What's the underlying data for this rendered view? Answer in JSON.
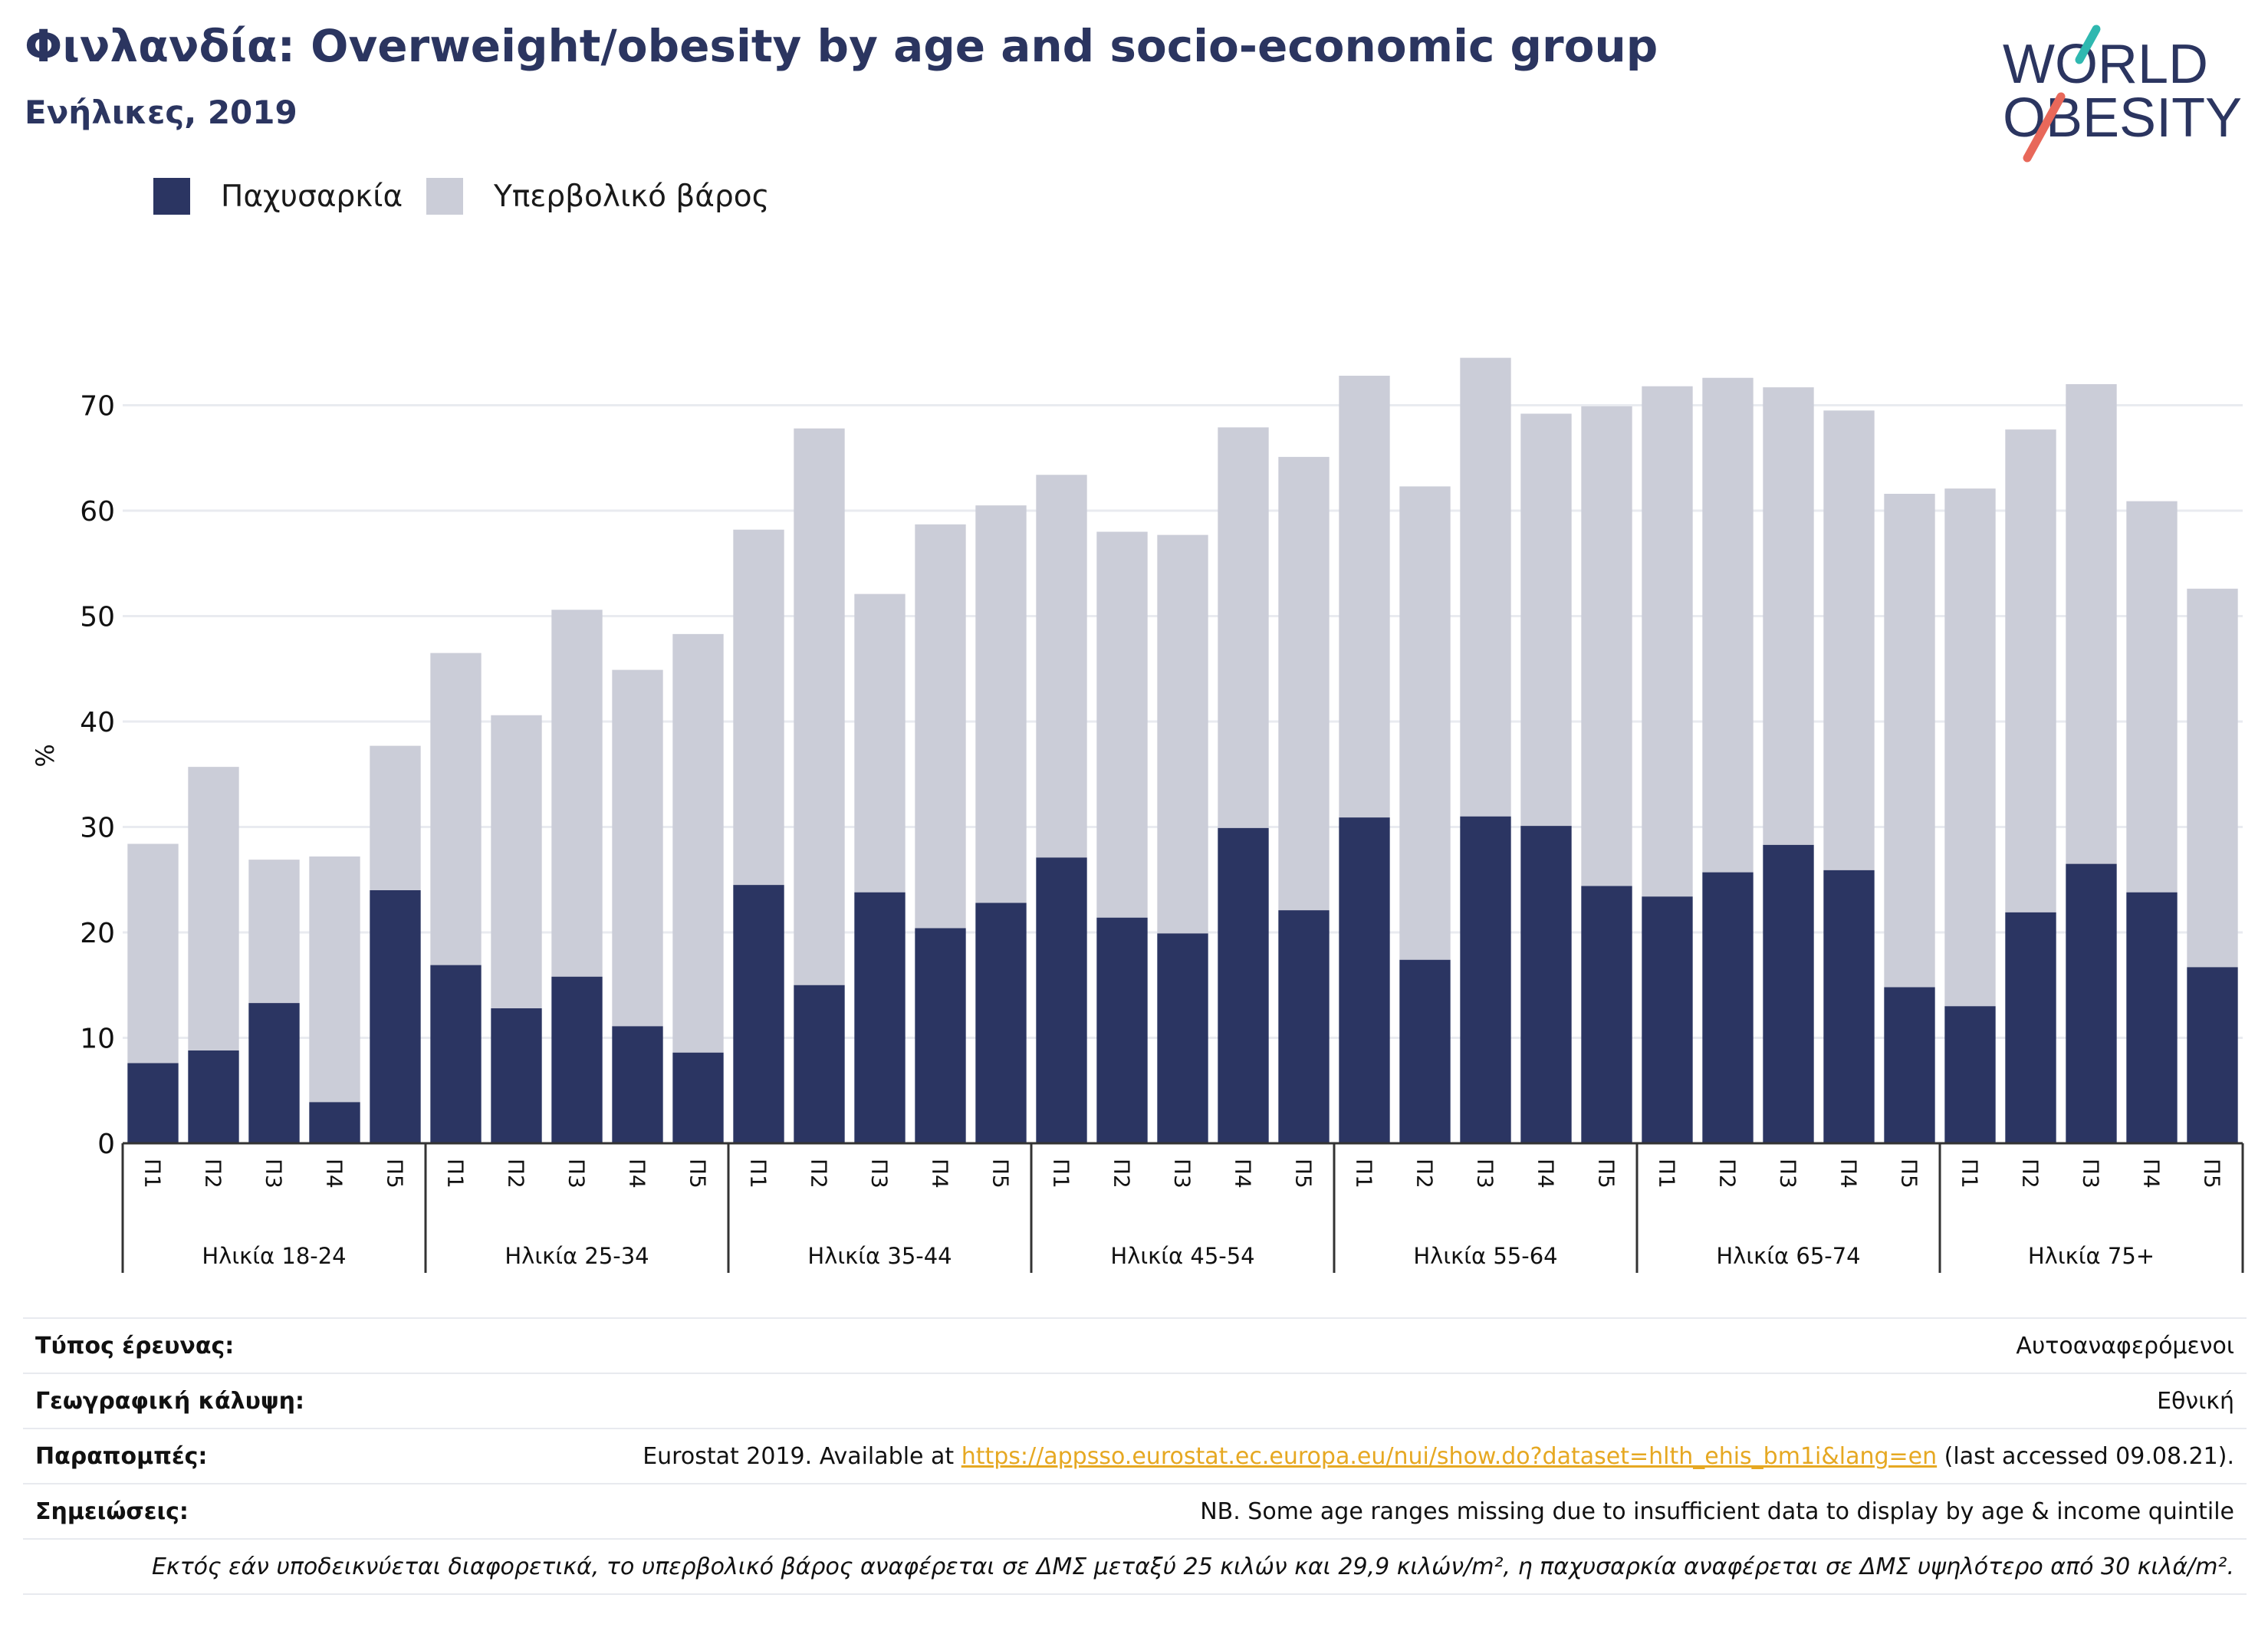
{
  "header": {
    "title": "Φινλανδία: Overweight/obesity by age and socio-economic group",
    "subtitle": "Ενήλικες, 2019"
  },
  "logo": {
    "line1": "WORLD",
    "line2": "OBESITY"
  },
  "colors": {
    "obesity": "#2b3562",
    "overweight": "#cbcdd8",
    "grid": "#e9ebf0",
    "axis": "#333333",
    "link": "#e6a822"
  },
  "chart_data": {
    "type": "bar",
    "stacked": true,
    "ylabel": "%",
    "ylim": [
      0,
      75
    ],
    "yticks": [
      0,
      10,
      20,
      30,
      40,
      50,
      60,
      70
    ],
    "grid": true,
    "legend_position": "top-left",
    "legend": [
      "Παχυσαρκία",
      "Υπερβολικό βάρος"
    ],
    "groups": [
      "Ηλικία 18-24",
      "Ηλικία 25-34",
      "Ηλικία 35-44",
      "Ηλικία 45-54",
      "Ηλικία 55-64",
      "Ηλικία 65-74",
      "Ηλικία 75+"
    ],
    "subcategories": [
      "Π1",
      "Π2",
      "Π3",
      "Π4",
      "Π5"
    ],
    "series": [
      {
        "name": "Παχυσαρκία",
        "values": [
          7.6,
          8.8,
          13.3,
          3.9,
          24.0,
          16.9,
          12.8,
          15.8,
          11.1,
          8.6,
          24.5,
          15.0,
          23.8,
          20.4,
          22.8,
          27.1,
          21.4,
          19.9,
          29.9,
          22.1,
          30.9,
          17.4,
          31.0,
          30.1,
          24.4,
          23.4,
          25.7,
          28.3,
          25.9,
          14.8,
          13.0,
          21.9,
          26.5,
          23.8,
          16.7
        ]
      },
      {
        "name": "Υπερβολικό βάρος",
        "values": [
          20.8,
          26.9,
          13.6,
          23.3,
          13.7,
          29.6,
          27.8,
          34.8,
          33.8,
          39.7,
          33.7,
          52.8,
          28.3,
          38.3,
          37.7,
          36.3,
          36.6,
          37.8,
          38.0,
          43.0,
          41.9,
          44.9,
          43.5,
          39.1,
          45.5,
          48.4,
          46.9,
          43.4,
          43.6,
          46.8,
          49.1,
          45.8,
          45.5,
          37.1,
          35.9
        ]
      }
    ]
  },
  "info": {
    "survey_key": "Τύπος έρευνας:",
    "survey_val": "Αυτοαναφερόμενοι",
    "coverage_key": "Γεωγραφική κάλυψη:",
    "coverage_val": "Εθνική",
    "refs_key": "Παραπομπές:",
    "refs_prefix": "Eurostat 2019. Available at ",
    "refs_link": "https://appsso.eurostat.ec.europa.eu/nui/show.do?dataset=hlth_ehis_bm1i&lang=en",
    "refs_suffix": " (last accessed 09.08.21).",
    "notes_key": "Σημειώσεις:",
    "notes_val": "NB. Some age ranges missing due to insufficient data to display by age & income quintile",
    "footnote": "Εκτός εάν υποδεικνύεται διαφορετικά, το υπερβολικό βάρος αναφέρεται σε ΔΜΣ μεταξύ 25 κιλών και 29,9 κιλών/m², η παχυσαρκία αναφέρεται σε ΔΜΣ υψηλότερο από 30 κιλά/m²."
  }
}
